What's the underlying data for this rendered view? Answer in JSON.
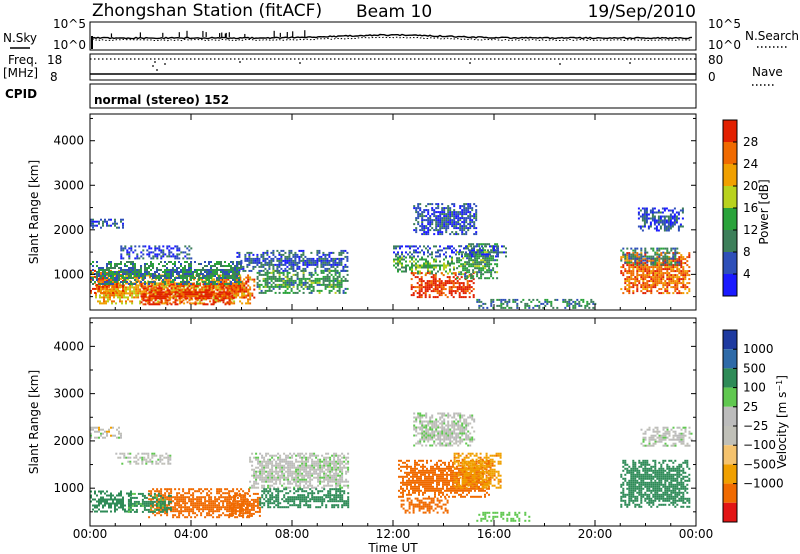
{
  "header": {
    "station": "Zhongshan Station (fitACF)",
    "beam": "Beam 10",
    "date": "19/Sep/2010"
  },
  "top_panels": {
    "nsky_label": "N.Sky",
    "nsky_ticks": [
      "10^5",
      "10^0"
    ],
    "nsearch_label": "N.Search",
    "nsearch_ticks": [
      "10^5",
      "10^0"
    ],
    "freq_label": "Freq.",
    "freq_unit": "[MHz]",
    "freq_ticks": [
      "18",
      "8"
    ],
    "nave_label": "Nave",
    "nave_ticks": [
      "80",
      "0"
    ],
    "cpid_label": "CPID",
    "cpid_value": "normal (stereo) 152"
  },
  "colors": {
    "power_scale": [
      "#1a1aff",
      "#2e4fb8",
      "#3d7f5a",
      "#2aa33a",
      "#b8d21e",
      "#f0a000",
      "#f06a00",
      "#e22000"
    ],
    "velocity_scale": [
      "#e21515",
      "#f06a00",
      "#f0a000",
      "#f5c36e",
      "#c0c0b8",
      "#bcbcbc",
      "#60c850",
      "#2e8b57",
      "#2e6aa8",
      "#1e3aa0"
    ]
  },
  "chart_data": [
    {
      "type": "heatmap",
      "name": "power",
      "x_ticks": [
        "00:00",
        "04:00",
        "08:00",
        "12:00",
        "16:00",
        "20:00",
        "00:00"
      ],
      "xlim_hours": [
        0,
        24
      ],
      "ylabel": "Slant Range [km]",
      "ylim_km": [
        200,
        4600
      ],
      "y_ticks": [
        1000,
        2000,
        3000,
        4000
      ],
      "colorbar_label": "Power [dB]",
      "colorbar_ticks": [
        4,
        8,
        12,
        16,
        20,
        24,
        28
      ],
      "colorbar_range": [
        0,
        32
      ],
      "regions": [
        {
          "t0": 0.2,
          "t1": 6.3,
          "r0": 350,
          "r1": 1000,
          "value": 22
        },
        {
          "t0": 2.0,
          "t1": 5.8,
          "r0": 350,
          "r1": 800,
          "value": 30
        },
        {
          "t0": 0.0,
          "t1": 1.3,
          "r0": 600,
          "r1": 1100,
          "value": 26
        },
        {
          "t0": 5.2,
          "t1": 6.5,
          "r0": 500,
          "r1": 950,
          "value": 28
        },
        {
          "t0": 5.8,
          "t1": 10.2,
          "r0": 1100,
          "r1": 1550,
          "value": 7
        },
        {
          "t0": 6.6,
          "t1": 10.2,
          "r0": 600,
          "r1": 1100,
          "value": 12
        },
        {
          "t0": 0.0,
          "t1": 6.0,
          "r0": 800,
          "r1": 1300,
          "value": 10
        },
        {
          "t0": 1.2,
          "t1": 4.0,
          "r0": 1350,
          "r1": 1650,
          "value": 6
        },
        {
          "t0": 0.0,
          "t1": 1.3,
          "r0": 2050,
          "r1": 2250,
          "value": 7
        },
        {
          "t0": 12.0,
          "t1": 14.4,
          "r0": 1000,
          "r1": 1400,
          "value": 14
        },
        {
          "t0": 12.7,
          "t1": 15.2,
          "r0": 500,
          "r1": 1050,
          "value": 30
        },
        {
          "t0": 14.5,
          "t1": 16.1,
          "r0": 900,
          "r1": 1700,
          "value": 12
        },
        {
          "t0": 12.0,
          "t1": 16.5,
          "r0": 1400,
          "r1": 1650,
          "value": 6
        },
        {
          "t0": 12.8,
          "t1": 15.3,
          "r0": 1900,
          "r1": 2600,
          "value": 6
        },
        {
          "t0": 15.3,
          "t1": 20.0,
          "r0": 250,
          "r1": 450,
          "value": 10
        },
        {
          "t0": 21.0,
          "t1": 23.7,
          "r0": 600,
          "r1": 1500,
          "value": 26
        },
        {
          "t0": 21.0,
          "t1": 23.3,
          "r0": 1200,
          "r1": 1600,
          "value": 10
        },
        {
          "t0": 21.7,
          "t1": 23.5,
          "r0": 2000,
          "r1": 2500,
          "value": 6
        }
      ]
    },
    {
      "type": "heatmap",
      "name": "velocity",
      "x_ticks": [
        "00:00",
        "04:00",
        "08:00",
        "12:00",
        "16:00",
        "20:00",
        "00:00"
      ],
      "xlim_hours": [
        0,
        24
      ],
      "xlabel": "Time UT",
      "ylabel": "Slant Range [km]",
      "ylim_km": [
        200,
        4600
      ],
      "y_ticks": [
        1000,
        2000,
        3000,
        4000
      ],
      "colorbar_label": "Velocity [m s^-1]",
      "colorbar_ticks": [
        "1000",
        "500",
        "100",
        "25",
        "−25",
        "−100",
        "−500",
        "−1000"
      ],
      "regions": [
        {
          "t0": 0.0,
          "t1": 1.2,
          "r0": 2050,
          "r1": 2300,
          "value": 0
        },
        {
          "t0": 0.0,
          "t1": 1.6,
          "r0": 500,
          "r1": 950,
          "value": 150
        },
        {
          "t0": 2.3,
          "t1": 6.3,
          "r0": 400,
          "r1": 1000,
          "value": -200
        },
        {
          "t0": 1.5,
          "t1": 3.2,
          "r0": 500,
          "r1": 900,
          "value": 120
        },
        {
          "t0": 5.5,
          "t1": 6.7,
          "r0": 400,
          "r1": 900,
          "value": -300
        },
        {
          "t0": 6.3,
          "t1": 10.2,
          "r0": 1000,
          "r1": 1750,
          "value": 5
        },
        {
          "t0": 6.7,
          "t1": 10.2,
          "r0": 600,
          "r1": 1000,
          "value": 150
        },
        {
          "t0": 1.0,
          "t1": 3.2,
          "r0": 1500,
          "r1": 1750,
          "value": 10
        },
        {
          "t0": 12.2,
          "t1": 15.8,
          "r0": 800,
          "r1": 1600,
          "value": -300
        },
        {
          "t0": 12.3,
          "t1": 14.2,
          "r0": 500,
          "r1": 800,
          "value": -150
        },
        {
          "t0": 14.4,
          "t1": 16.3,
          "r0": 1000,
          "r1": 1750,
          "value": -80
        },
        {
          "t0": 15.3,
          "t1": 17.4,
          "r0": 300,
          "r1": 500,
          "value": 60
        },
        {
          "t0": 12.8,
          "t1": 15.2,
          "r0": 1900,
          "r1": 2600,
          "value": 8
        },
        {
          "t0": 21.0,
          "t1": 23.7,
          "r0": 600,
          "r1": 1600,
          "value": 200
        },
        {
          "t0": 21.8,
          "t1": 23.8,
          "r0": 1900,
          "r1": 2300,
          "value": 5
        }
      ]
    }
  ]
}
